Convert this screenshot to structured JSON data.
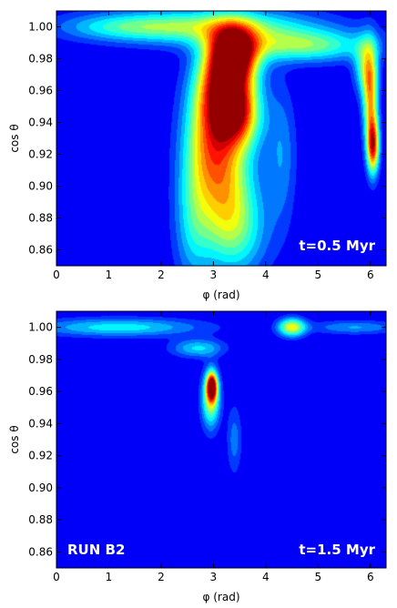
{
  "chart_data": [
    {
      "type": "heatmap",
      "xlabel": "φ (rad)",
      "ylabel": "cos θ",
      "xlim": [
        0,
        6.3
      ],
      "ylim": [
        0.85,
        1.01
      ],
      "xticks": [
        "0",
        "1",
        "2",
        "3",
        "4",
        "5",
        "6"
      ],
      "yticks": [
        "0.86",
        "0.88",
        "0.90",
        "0.92",
        "0.94",
        "0.96",
        "0.98",
        "1.00"
      ],
      "annotations": [
        {
          "text": "t=0.5 Myr",
          "position": "bottom-right"
        }
      ],
      "colormap": "jet",
      "background_color": "#00008f",
      "blobs": [
        {
          "phi": 3.4,
          "cos": 0.983,
          "sphi": 0.32,
          "scos": 0.012,
          "a": 1.0
        },
        {
          "phi": 3.2,
          "cos": 0.962,
          "sphi": 0.35,
          "scos": 0.018,
          "a": 0.85
        },
        {
          "phi": 3.5,
          "cos": 0.945,
          "sphi": 0.3,
          "scos": 0.015,
          "a": 0.6
        },
        {
          "phi": 2.95,
          "cos": 0.93,
          "sphi": 0.35,
          "scos": 0.025,
          "a": 0.55
        },
        {
          "phi": 3.25,
          "cos": 0.9,
          "sphi": 0.4,
          "scos": 0.025,
          "a": 0.45
        },
        {
          "phi": 3.4,
          "cos": 0.87,
          "sphi": 0.45,
          "scos": 0.02,
          "a": 0.32
        },
        {
          "phi": 2.6,
          "cos": 0.88,
          "sphi": 0.25,
          "scos": 0.03,
          "a": 0.25
        },
        {
          "phi": 3.1,
          "cos": 1.0,
          "sphi": 1.3,
          "scos": 0.008,
          "a": 0.45
        },
        {
          "phi": 4.7,
          "cos": 0.988,
          "sphi": 0.9,
          "scos": 0.007,
          "a": 0.45
        },
        {
          "phi": 1.3,
          "cos": 1.0,
          "sphi": 0.9,
          "scos": 0.006,
          "a": 0.28
        },
        {
          "phi": 6.05,
          "cos": 0.925,
          "sphi": 0.08,
          "scos": 0.012,
          "a": 0.85
        },
        {
          "phi": 6.0,
          "cos": 0.955,
          "sphi": 0.1,
          "scos": 0.02,
          "a": 0.65
        },
        {
          "phi": 5.9,
          "cos": 0.975,
          "sphi": 0.15,
          "scos": 0.012,
          "a": 0.4
        },
        {
          "phi": 4.3,
          "cos": 0.92,
          "sphi": 0.2,
          "scos": 0.03,
          "a": 0.2
        }
      ]
    },
    {
      "type": "heatmap",
      "xlabel": "φ (rad)",
      "ylabel": "cos θ",
      "xlim": [
        0,
        6.3
      ],
      "ylim": [
        0.85,
        1.01
      ],
      "xticks": [
        "0",
        "1",
        "2",
        "3",
        "4",
        "5",
        "6"
      ],
      "yticks": [
        "0.86",
        "0.88",
        "0.90",
        "0.92",
        "0.94",
        "0.96",
        "0.98",
        "1.00"
      ],
      "annotations": [
        {
          "text": "RUN B2",
          "position": "bottom-left"
        },
        {
          "text": "t=1.5 Myr",
          "position": "bottom-right"
        }
      ],
      "colormap": "jet",
      "background_color": "#00008f",
      "blobs": [
        {
          "phi": 2.97,
          "cos": 0.963,
          "sphi": 0.07,
          "scos": 0.006,
          "a": 1.0
        },
        {
          "phi": 2.95,
          "cos": 0.955,
          "sphi": 0.12,
          "scos": 0.012,
          "a": 0.55
        },
        {
          "phi": 4.5,
          "cos": 1.0,
          "sphi": 0.18,
          "scos": 0.004,
          "a": 0.6
        },
        {
          "phi": 1.2,
          "cos": 1.0,
          "sphi": 1.1,
          "scos": 0.004,
          "a": 0.33
        },
        {
          "phi": 5.7,
          "cos": 1.0,
          "sphi": 0.6,
          "scos": 0.003,
          "a": 0.22
        },
        {
          "phi": 2.7,
          "cos": 0.987,
          "sphi": 0.35,
          "scos": 0.004,
          "a": 0.3
        },
        {
          "phi": 3.4,
          "cos": 0.93,
          "sphi": 0.1,
          "scos": 0.015,
          "a": 0.18
        }
      ]
    }
  ]
}
